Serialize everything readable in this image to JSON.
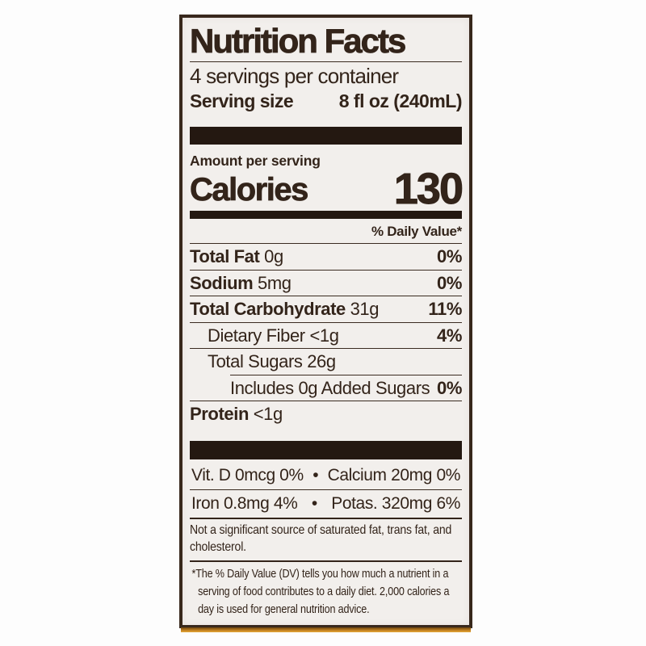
{
  "label": {
    "title": "Nutrition Facts",
    "servings_line": "4 servings per container",
    "serving_size_label": "Serving size",
    "serving_size_value": "8 fl oz (240mL)",
    "amount_per_serving": "Amount per serving",
    "calories_label": "Calories",
    "calories_value": "130",
    "daily_value_header": "% Daily Value*",
    "nutrients": [
      {
        "name": "Total Fat",
        "amount": "0g",
        "dv": "0%"
      },
      {
        "name": "Sodium",
        "amount": "5mg",
        "dv": "0%"
      },
      {
        "name": "Total Carbohydrate",
        "amount": "31g",
        "dv": "11%"
      },
      {
        "name": "Dietary Fiber",
        "amount": "<1g",
        "dv": "4%"
      },
      {
        "name": "Total Sugars",
        "amount": "26g",
        "dv": ""
      },
      {
        "name": "Includes 0g Added Sugars",
        "amount": "",
        "dv": "0%"
      },
      {
        "name": "Protein",
        "amount": "<1g",
        "dv": ""
      }
    ],
    "micronutrients": [
      {
        "left": "Vit. D 0mcg 0%",
        "separator": "•",
        "right": "Calcium 20mg 0%"
      },
      {
        "left": "Iron 0.8mg 4%",
        "separator": "•",
        "right": "Potas. 320mg 6%"
      }
    ],
    "not_significant": "Not a significant source of saturated fat, trans fat, and cholesterol.",
    "footnote": "*The % Daily Value (DV) tells you how much a nutrient in a serving of food contributes to a daily diet. 2,000 calories a day is used for general nutrition advice."
  },
  "colors": {
    "label_background": "#f2efec",
    "ink": "#33241a",
    "bar": "#241811",
    "border": "#38281c",
    "accent_strip": "#cf8c26",
    "photo_background": "#fdfdfd"
  }
}
